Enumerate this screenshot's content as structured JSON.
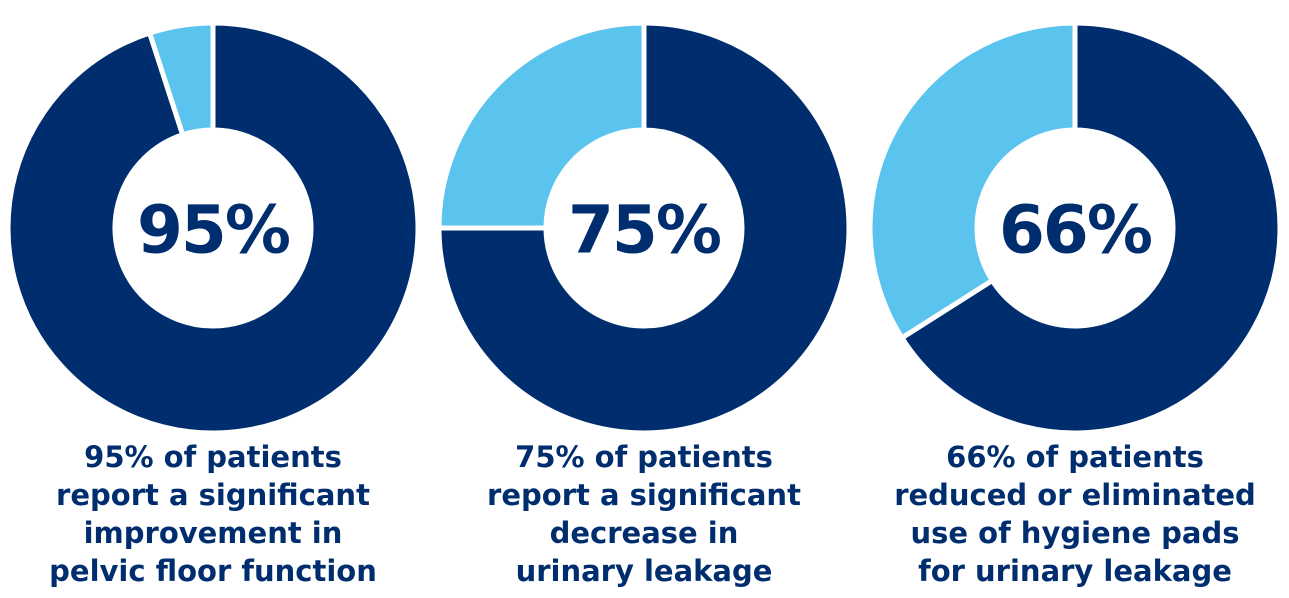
{
  "colors": {
    "primary": "#002d6e",
    "secondary": "#5bc4ee",
    "separator": "#ffffff",
    "text": "#002d6e"
  },
  "chart_data": [
    {
      "type": "pie",
      "variant": "donut",
      "values": [
        95,
        5
      ],
      "slice_colors": [
        "#002d6e",
        "#5bc4ee"
      ],
      "center_label": "95%",
      "caption_lines": [
        "95% of patients",
        "report a significant",
        "improvement in",
        "pelvic floor function"
      ]
    },
    {
      "type": "pie",
      "variant": "donut",
      "values": [
        75,
        25
      ],
      "slice_colors": [
        "#002d6e",
        "#5bc4ee"
      ],
      "center_label": "75%",
      "caption_lines": [
        "75% of patients",
        "report a significant",
        "decrease in",
        "urinary leakage"
      ]
    },
    {
      "type": "pie",
      "variant": "donut",
      "values": [
        66,
        34
      ],
      "slice_colors": [
        "#002d6e",
        "#5bc4ee"
      ],
      "center_label": "66%",
      "caption_lines": [
        "66% of patients",
        "reduced or eliminated",
        "use of hygiene pads",
        "for urinary leakage"
      ]
    }
  ]
}
